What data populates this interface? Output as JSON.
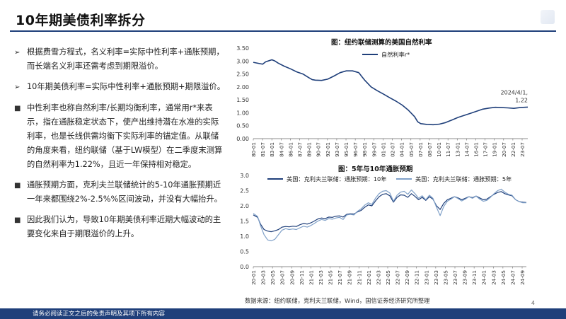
{
  "page": {
    "title": "10年期美债利率拆分",
    "page_number": "4",
    "source": "数据来源：纽约联储，克利夫兰联储，Wind，国信证券经济研究所整理",
    "footer": "请务必阅读正文之后的免责声明及其项下所有内容"
  },
  "bullets": [
    {
      "marker": "➢",
      "text": "根据费雪方程式，名义利率=实际中性利率+通胀预期，而长端名义利率还需考虑到期限溢价。"
    },
    {
      "marker": "➢",
      "text": "10年期美债利率=实际中性利率+通胀预期+期限溢价。"
    },
    {
      "marker": "■",
      "text": "中性利率也称自然利率/长期均衡利率，通常用r*来表示，指在通胀稳定状态下，使产出维持潜在水准的实际利率，也是长线供需均衡下实际利率的锚定值。从联储的角度来看，纽约联储（基于LW模型）在二季度末测算的自然利率为1.22%，且近一年保持相对稳定。"
    },
    {
      "marker": "■",
      "text": "通胀预期方面，克利夫兰联储统计的5-10年通胀预期近一年来都围绕2%-2.5%%区间波动，并没有大幅抬升。"
    },
    {
      "marker": "■",
      "text": "因此我们认为，导致10年期美债利率近期大幅波动的主要变化来自于期限溢价的上升。"
    }
  ],
  "chart_data": [
    {
      "type": "line",
      "title": "图：纽约联储测算的美国自然利率",
      "ylim": [
        0,
        3.5
      ],
      "yticks": [
        "0.00",
        "0.50",
        "1.00",
        "1.50",
        "2.00",
        "2.50",
        "3.00",
        "3.50"
      ],
      "categories": [
        "80-01",
        "81-07",
        "83-01",
        "84-07",
        "86-01",
        "87-07",
        "89-01",
        "90-07",
        "92-01",
        "93-07",
        "95-01",
        "96-07",
        "98-01",
        "99-07",
        "01-01",
        "02-07",
        "04-01",
        "05-07",
        "07-01",
        "08-07",
        "10-01",
        "11-07",
        "13-01",
        "14-07",
        "16-01",
        "17-07",
        "19-01",
        "20-07",
        "22-01",
        "23-07"
      ],
      "annotation": {
        "text_line1": "2024/4/1,",
        "text_line2": "1.22",
        "x": 44.25,
        "y": 1.22
      },
      "series": [
        {
          "name": "自然利率r*",
          "color": "#1f3f7a",
          "points": [
            [
              0,
              2.95
            ],
            [
              1,
              2.9
            ],
            [
              1.5,
              2.88
            ],
            [
              2,
              2.97
            ],
            [
              3,
              3.05
            ],
            [
              3.5,
              3.0
            ],
            [
              4,
              2.92
            ],
            [
              5,
              2.8
            ],
            [
              6,
              2.7
            ],
            [
              7,
              2.58
            ],
            [
              8,
              2.5
            ],
            [
              9,
              2.35
            ],
            [
              9.5,
              2.28
            ],
            [
              10,
              2.26
            ],
            [
              11,
              2.25
            ],
            [
              12,
              2.3
            ],
            [
              13,
              2.42
            ],
            [
              14,
              2.55
            ],
            [
              15,
              2.62
            ],
            [
              16,
              2.62
            ],
            [
              17,
              2.55
            ],
            [
              17.5,
              2.4
            ],
            [
              18,
              2.25
            ],
            [
              19,
              2.0
            ],
            [
              20,
              1.85
            ],
            [
              21,
              1.72
            ],
            [
              22,
              1.58
            ],
            [
              23,
              1.45
            ],
            [
              24,
              1.3
            ],
            [
              25,
              1.1
            ],
            [
              26,
              0.85
            ],
            [
              26.5,
              0.65
            ],
            [
              27,
              0.58
            ],
            [
              28,
              0.55
            ],
            [
              29,
              0.54
            ],
            [
              30,
              0.56
            ],
            [
              31,
              0.62
            ],
            [
              32,
              0.72
            ],
            [
              33,
              0.82
            ],
            [
              34,
              0.9
            ],
            [
              35,
              0.98
            ],
            [
              36,
              1.06
            ],
            [
              37,
              1.14
            ],
            [
              38,
              1.18
            ],
            [
              39,
              1.21
            ],
            [
              40,
              1.2
            ],
            [
              41,
              1.19
            ],
            [
              42,
              1.17
            ],
            [
              43,
              1.2
            ],
            [
              44.25,
              1.22
            ]
          ]
        }
      ]
    },
    {
      "type": "line",
      "title": "图：5年与10年通胀预期",
      "ylim": [
        0,
        3.0
      ],
      "yticks": [
        "0.0",
        "0.5",
        "1.0",
        "1.5",
        "2.0",
        "2.5",
        "3.0"
      ],
      "categories": [
        "20-01",
        "20-03",
        "20-05",
        "20-07",
        "20-09",
        "20-11",
        "21-01",
        "21-03",
        "21-05",
        "21-07",
        "21-09",
        "21-11",
        "22-01",
        "22-03",
        "22-05",
        "22-07",
        "22-09",
        "22-11",
        "23-01",
        "23-03",
        "23-05",
        "23-07",
        "23-09",
        "23-11",
        "24-01",
        "24-03",
        "24-05",
        "24-07",
        "24-09"
      ],
      "series": [
        {
          "name": "美国：克利夫兰联储：通胀预期：10年",
          "color": "#1f3f7a",
          "points": [
            [
              0,
              1.7
            ],
            [
              0.6,
              1.62
            ],
            [
              1,
              1.4
            ],
            [
              1.5,
              1.22
            ],
            [
              2,
              1.17
            ],
            [
              2.5,
              1.15
            ],
            [
              3,
              1.18
            ],
            [
              3.5,
              1.22
            ],
            [
              4,
              1.3
            ],
            [
              4.5,
              1.32
            ],
            [
              5,
              1.31
            ],
            [
              5.5,
              1.33
            ],
            [
              6,
              1.32
            ],
            [
              6.5,
              1.38
            ],
            [
              7,
              1.42
            ],
            [
              7.5,
              1.4
            ],
            [
              8,
              1.44
            ],
            [
              8.5,
              1.5
            ],
            [
              9,
              1.57
            ],
            [
              9.5,
              1.6
            ],
            [
              10,
              1.58
            ],
            [
              10.5,
              1.63
            ],
            [
              11,
              1.62
            ],
            [
              11.5,
              1.66
            ],
            [
              12,
              1.67
            ],
            [
              12.5,
              1.63
            ],
            [
              13,
              1.72
            ],
            [
              13.5,
              1.74
            ],
            [
              14,
              1.73
            ],
            [
              14.5,
              1.8
            ],
            [
              15,
              1.85
            ],
            [
              15.5,
              1.95
            ],
            [
              16,
              2.03
            ],
            [
              16.5,
              2.0
            ],
            [
              17,
              2.16
            ],
            [
              17.5,
              2.3
            ],
            [
              18,
              2.38
            ],
            [
              18.5,
              2.4
            ],
            [
              19,
              2.33
            ],
            [
              19.5,
              2.12
            ],
            [
              20,
              2.28
            ],
            [
              20.5,
              2.36
            ],
            [
              21,
              2.35
            ],
            [
              21.5,
              2.28
            ],
            [
              22,
              2.4
            ],
            [
              22.5,
              2.31
            ],
            [
              23,
              2.2
            ],
            [
              23.5,
              2.28
            ],
            [
              24,
              2.18
            ],
            [
              24.5,
              2.3
            ],
            [
              25,
              2.22
            ],
            [
              25.5,
              2.0
            ],
            [
              26,
              1.88
            ],
            [
              26.5,
              2.08
            ],
            [
              27,
              2.2
            ],
            [
              27.5,
              2.25
            ],
            [
              28,
              2.3
            ],
            [
              28.5,
              2.26
            ],
            [
              29,
              2.2
            ],
            [
              29.5,
              2.25
            ],
            [
              30,
              2.3
            ],
            [
              30.5,
              2.27
            ],
            [
              31,
              2.32
            ],
            [
              31.5,
              2.26
            ],
            [
              32,
              2.2
            ],
            [
              32.5,
              2.22
            ],
            [
              33,
              2.3
            ],
            [
              33.5,
              2.38
            ],
            [
              34,
              2.44
            ],
            [
              34.5,
              2.47
            ],
            [
              35,
              2.4
            ],
            [
              35.5,
              2.36
            ],
            [
              36,
              2.33
            ],
            [
              36.5,
              2.2
            ],
            [
              37,
              2.14
            ],
            [
              37.5,
              2.12
            ],
            [
              38,
              2.11
            ]
          ]
        },
        {
          "name": "美国：克利夫兰联储：通胀预期：5年",
          "color": "#7fa0c8",
          "points": [
            [
              0,
              1.75
            ],
            [
              0.6,
              1.65
            ],
            [
              1,
              1.35
            ],
            [
              1.5,
              1.05
            ],
            [
              2,
              0.88
            ],
            [
              2.5,
              0.85
            ],
            [
              3,
              0.9
            ],
            [
              3.5,
              1.05
            ],
            [
              4,
              1.2
            ],
            [
              4.5,
              1.25
            ],
            [
              5,
              1.22
            ],
            [
              5.5,
              1.24
            ],
            [
              6,
              1.22
            ],
            [
              6.5,
              1.28
            ],
            [
              7,
              1.33
            ],
            [
              7.5,
              1.3
            ],
            [
              8,
              1.35
            ],
            [
              8.5,
              1.42
            ],
            [
              9,
              1.5
            ],
            [
              9.5,
              1.55
            ],
            [
              10,
              1.52
            ],
            [
              10.5,
              1.58
            ],
            [
              11,
              1.56
            ],
            [
              11.5,
              1.6
            ],
            [
              12,
              1.62
            ],
            [
              12.5,
              1.55
            ],
            [
              13,
              1.7
            ],
            [
              13.5,
              1.72
            ],
            [
              14,
              1.7
            ],
            [
              14.5,
              1.82
            ],
            [
              15,
              1.9
            ],
            [
              15.5,
              2.02
            ],
            [
              16,
              2.1
            ],
            [
              16.5,
              2.05
            ],
            [
              17,
              2.25
            ],
            [
              17.5,
              2.4
            ],
            [
              18,
              2.48
            ],
            [
              18.5,
              2.5
            ],
            [
              19,
              2.42
            ],
            [
              19.5,
              2.15
            ],
            [
              20,
              2.35
            ],
            [
              20.5,
              2.45
            ],
            [
              21,
              2.48
            ],
            [
              21.5,
              2.38
            ],
            [
              22,
              2.52
            ],
            [
              22.5,
              2.4
            ],
            [
              23,
              2.25
            ],
            [
              23.5,
              2.33
            ],
            [
              24,
              2.2
            ],
            [
              24.5,
              2.35
            ],
            [
              25,
              2.25
            ],
            [
              25.5,
              1.95
            ],
            [
              26,
              1.68
            ],
            [
              26.5,
              1.98
            ],
            [
              27,
              2.15
            ],
            [
              27.5,
              2.22
            ],
            [
              28,
              2.3
            ],
            [
              28.5,
              2.24
            ],
            [
              29,
              2.16
            ],
            [
              29.5,
              2.22
            ],
            [
              30,
              2.3
            ],
            [
              30.5,
              2.25
            ],
            [
              31,
              2.32
            ],
            [
              31.5,
              2.22
            ],
            [
              32,
              2.15
            ],
            [
              32.5,
              2.18
            ],
            [
              33,
              2.28
            ],
            [
              33.5,
              2.4
            ],
            [
              34,
              2.5
            ],
            [
              34.5,
              2.55
            ],
            [
              35,
              2.45
            ],
            [
              35.5,
              2.38
            ],
            [
              36,
              2.35
            ],
            [
              36.5,
              2.2
            ],
            [
              37,
              2.14
            ],
            [
              37.5,
              2.1
            ],
            [
              38,
              2.1
            ]
          ]
        }
      ]
    }
  ]
}
